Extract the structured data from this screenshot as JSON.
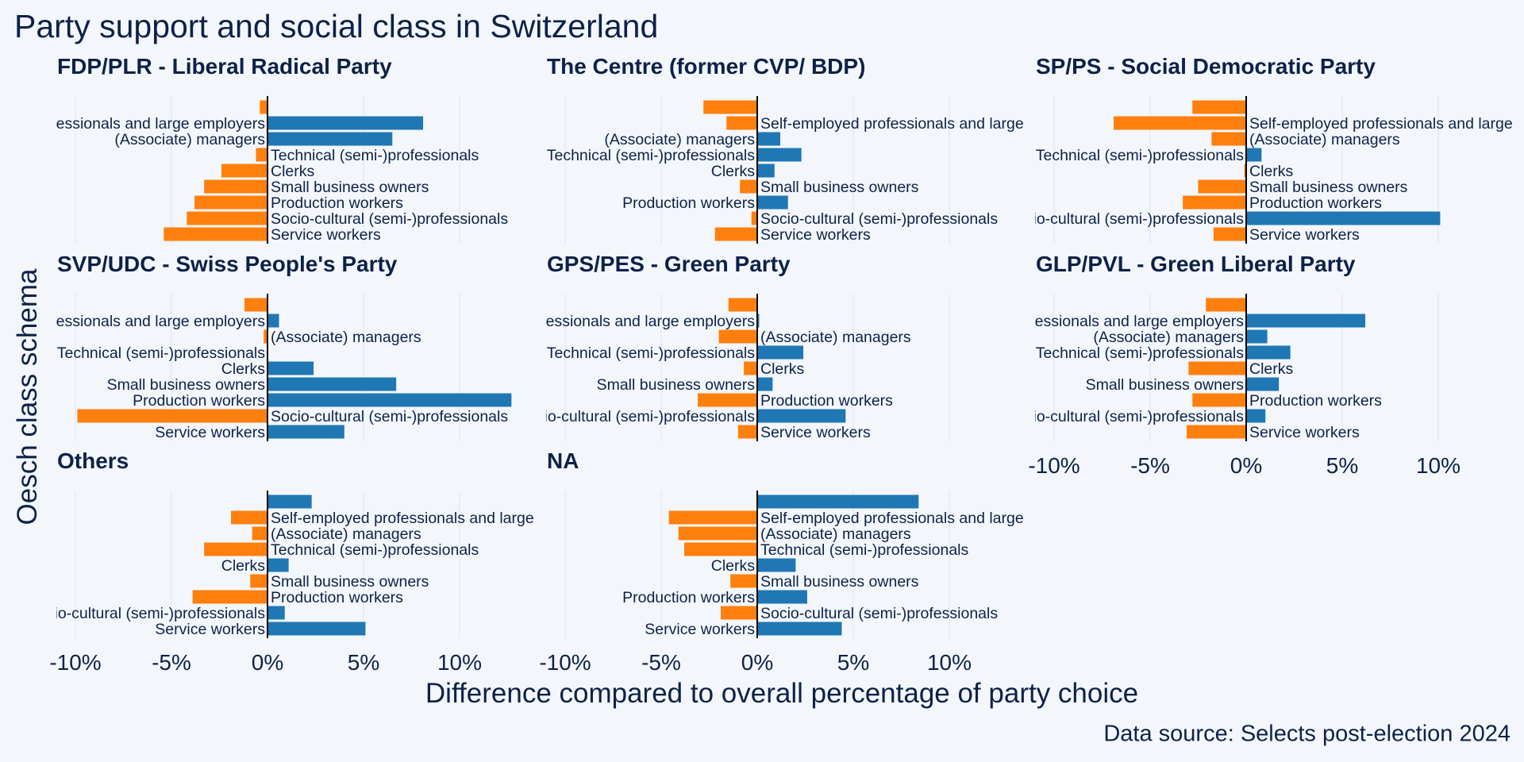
{
  "title": "Party support and social class in Switzerland",
  "xlabel": "Difference compared to overall percentage of party choice",
  "ylabel": "Oesch class schema",
  "caption": "Data source: Selects post-election 2024",
  "colors": {
    "positive": "#1f77b4",
    "negative": "#ff7f0e",
    "background": "#f3f7fc",
    "text": "#0d2148"
  },
  "chart_data": {
    "type": "bar",
    "orientation": "horizontal",
    "facet_layout": "3 columns",
    "xlim": [
      -11,
      13
    ],
    "x_ticks": [
      -10,
      -5,
      0,
      5,
      10
    ],
    "x_tick_labels": [
      "-10%",
      "-5%",
      "0%",
      "5%",
      "10%"
    ],
    "categories": [
      "",
      "Self-employed professionals and large employers",
      "(Associate) managers",
      "Technical (semi-)professionals",
      "Clerks",
      "Small business owners",
      "Production workers",
      "Socio-cultural (semi-)professionals",
      "Service workers"
    ],
    "panels": [
      {
        "name": "FDP/PLR - Liberal Radical Party",
        "values": [
          -0.4,
          8.1,
          6.5,
          -0.6,
          -2.4,
          -3.3,
          -3.8,
          -4.2,
          -5.4
        ]
      },
      {
        "name": "The Centre (former CVP/ BDP)",
        "values": [
          -2.8,
          -1.6,
          1.2,
          2.3,
          0.9,
          -0.9,
          1.6,
          -0.3,
          -2.2
        ]
      },
      {
        "name": "SP/PS - Social Democratic Party",
        "values": [
          -2.8,
          -6.9,
          -1.8,
          0.8,
          -0.1,
          -2.5,
          -3.3,
          10.1,
          -1.7
        ]
      },
      {
        "name": "SVP/UDC - Swiss People's Party",
        "values": [
          -1.2,
          0.6,
          -0.2,
          0.0,
          2.4,
          6.7,
          12.7,
          -9.9,
          4.0
        ]
      },
      {
        "name": "GPS/PES - Green Party",
        "values": [
          -1.5,
          0.1,
          -2.0,
          2.4,
          -0.7,
          0.8,
          -3.1,
          4.6,
          -1.0
        ]
      },
      {
        "name": "GLP/PVL - Green Liberal Party",
        "values": [
          -2.1,
          6.2,
          1.1,
          2.3,
          -3.0,
          1.7,
          -2.8,
          1.0,
          -3.1
        ]
      },
      {
        "name": "Others",
        "values": [
          2.3,
          -1.9,
          -0.8,
          -3.3,
          1.1,
          -0.9,
          -3.9,
          0.9,
          5.1
        ]
      },
      {
        "name": "NA",
        "values": [
          8.4,
          -4.6,
          -4.1,
          -3.8,
          2.0,
          -1.4,
          2.6,
          -1.9,
          4.4
        ]
      }
    ]
  }
}
